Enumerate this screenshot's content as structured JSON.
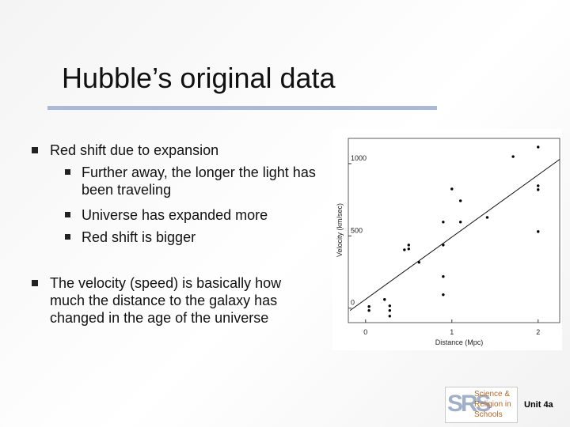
{
  "slide": {
    "title": "Hubble’s original data",
    "bullets": [
      {
        "text": "Red shift due to expansion",
        "sub": [
          "Further away, the longer the light has been traveling",
          "Universe has expanded more",
          "Red shift is bigger"
        ]
      },
      {
        "text": "The velocity (speed) is basically how much the distance to the galaxy has changed in the age of the universe"
      }
    ],
    "logo": {
      "letters": "SRS",
      "lines": [
        "Science &",
        "Religion in",
        "Schools"
      ]
    },
    "unit": "Unit 4a"
  },
  "chart_data": {
    "type": "scatter",
    "x_label": "Distance (Mpc)",
    "y_label": "Velocity (km/sec)",
    "xlim": [
      -0.2,
      2.25
    ],
    "ylim": [
      -100,
      1175
    ],
    "xticks": [
      0,
      1,
      2
    ],
    "yticks": [
      0,
      500,
      1000
    ],
    "color": "#000000",
    "x": [
      0.04,
      0.04,
      0.22,
      0.28,
      0.28,
      0.28,
      0.45,
      0.5,
      0.5,
      0.62,
      0.9,
      0.9,
      0.9,
      0.9,
      1.0,
      1.1,
      1.1,
      1.41,
      1.71,
      2.0,
      2.0,
      2.0,
      2.0
    ],
    "values": [
      11,
      -16,
      60,
      16,
      -16,
      -55,
      404,
      437,
      410,
      317,
      219,
      93,
      437,
      596,
      825,
      743,
      596,
      628,
      1049,
      1115,
      847,
      820,
      530
    ],
    "fit": {
      "x": [
        -0.18,
        2.25
      ],
      "values": [
        -16,
        1030
      ]
    }
  }
}
